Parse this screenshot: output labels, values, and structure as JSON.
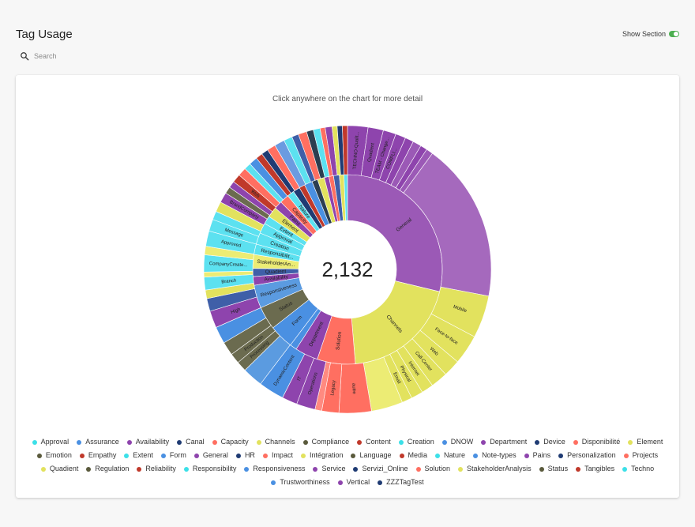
{
  "header": {
    "title": "Tag Usage",
    "toggle_label": "Show Section",
    "toggle_on": true
  },
  "search": {
    "placeholder": "Search",
    "icon": "search-icon"
  },
  "chart": {
    "hint": "Click anywhere on the chart for more detail",
    "total": "2,132"
  },
  "chart_data": {
    "type": "sunburst",
    "center_value": 2132,
    "inner_ring": [
      {
        "label": "General",
        "color": "#9b59b6",
        "weight": 0.292
      },
      {
        "label": "Channels",
        "color": "#e2e25e",
        "weight": 0.202
      },
      {
        "label": "Solution",
        "color": "#ff6f61",
        "weight": 0.066
      },
      {
        "label": "Department",
        "color": "#8e44ad",
        "weight": 0.04
      },
      {
        "label": "",
        "color": "#4a90e2",
        "weight": 0.012
      },
      {
        "label": "Form",
        "color": "#4a90e2",
        "weight": 0.042
      },
      {
        "label": "Status",
        "color": "#6b6b4f",
        "weight": 0.04
      },
      {
        "label": "Responsiveness",
        "color": "#5b9be0",
        "weight": 0.04
      },
      {
        "label": "Availability",
        "color": "#8e44ad",
        "weight": 0.015
      },
      {
        "label": "Quadient",
        "color": "#3f5fa8",
        "weight": 0.014
      },
      {
        "label": "StakeholderAn...",
        "color": "#ecec74",
        "weight": 0.024
      },
      {
        "label": "Responsibilit...",
        "color": "#5ce1f0",
        "weight": 0.018
      },
      {
        "label": "Creation",
        "color": "#5ce1f0",
        "weight": 0.02
      },
      {
        "label": "Approval",
        "color": "#5ce1f0",
        "weight": 0.018
      },
      {
        "label": "Extent",
        "color": "#5ce1f0",
        "weight": 0.014
      },
      {
        "label": "Element",
        "color": "#e2e25e",
        "weight": 0.018
      },
      {
        "label": "Pains",
        "color": "#8e44ad",
        "weight": 0.014
      },
      {
        "label": "Capacity",
        "color": "#ff6f61",
        "weight": 0.016
      },
      {
        "label": "Nature",
        "color": "#5ce1f0",
        "weight": 0.012
      },
      {
        "label": "",
        "color": "#1f3b73",
        "weight": 0.012
      },
      {
        "label": "",
        "color": "#c0392b",
        "weight": 0.01
      },
      {
        "label": "",
        "color": "#4a90e2",
        "weight": 0.014
      },
      {
        "label": "",
        "color": "#2c3e50",
        "weight": 0.01
      },
      {
        "label": "",
        "color": "#e2e25e",
        "weight": 0.012
      },
      {
        "label": "",
        "color": "#8e44ad",
        "weight": 0.008
      },
      {
        "label": "",
        "color": "#ff6f61",
        "weight": 0.008
      },
      {
        "label": "",
        "color": "#3f5fa8",
        "weight": 0.01
      },
      {
        "label": "",
        "color": "#e2e25e",
        "weight": 0.008
      },
      {
        "label": "",
        "color": "#5ce1f0",
        "weight": 0.006
      }
    ],
    "outer_ring": [
      {
        "label": "TECHNO-Qualit...",
        "color": "#8e44ad",
        "weight": 0.024
      },
      {
        "label": "Quadient",
        "color": "#8e44ad",
        "weight": 0.018
      },
      {
        "label": "TEAM - Change...",
        "color": "#8e44ad",
        "weight": 0.015
      },
      {
        "label": "COMPLI...",
        "color": "#8e44ad",
        "weight": 0.012
      },
      {
        "label": "",
        "color": "#8e44ad",
        "weight": 0.01
      },
      {
        "label": "",
        "color": "#9b59b6",
        "weight": 0.01
      },
      {
        "label": "",
        "color": "#8e44ad",
        "weight": 0.008
      },
      {
        "label": "",
        "color": "#9b59b6",
        "weight": 0.008
      },
      {
        "label": "",
        "color": "#a569bd",
        "weight": 0.187
      },
      {
        "label": "Mobile",
        "color": "#e2e25e",
        "weight": 0.05
      },
      {
        "label": "Face-to-face",
        "color": "#e2e25e",
        "weight": 0.035
      },
      {
        "label": "Web",
        "color": "#e2e25e",
        "weight": 0.02
      },
      {
        "label": "Call-Center",
        "color": "#e2e25e",
        "weight": 0.02
      },
      {
        "label": "Internet",
        "color": "#e2e25e",
        "weight": 0.014
      },
      {
        "label": "Physical",
        "color": "#e2e25e",
        "weight": 0.014
      },
      {
        "label": "Email",
        "color": "#e2e25e",
        "weight": 0.012
      },
      {
        "label": "",
        "color": "#ecec74",
        "weight": 0.037
      },
      {
        "label": "autre",
        "color": "#ff6f61",
        "weight": 0.038
      },
      {
        "label": "Legacy",
        "color": "#ff6f61",
        "weight": 0.02
      },
      {
        "label": "",
        "color": "#ff8a80",
        "weight": 0.008
      },
      {
        "label": "Operations",
        "color": "#8e44ad",
        "weight": 0.022
      },
      {
        "label": "IT",
        "color": "#8e44ad",
        "weight": 0.018
      },
      {
        "label": "DynamicContent",
        "color": "#4a90e2",
        "weight": 0.03
      },
      {
        "label": "",
        "color": "#5b9be0",
        "weight": 0.024
      },
      {
        "label": "Processing",
        "color": "#6b6b4f",
        "weight": 0.012
      },
      {
        "label": "Production",
        "color": "#6b6b4f",
        "weight": 0.012
      },
      {
        "label": "",
        "color": "#6b6b4f",
        "weight": 0.016
      },
      {
        "label": "",
        "color": "#4a90e2",
        "weight": 0.02
      },
      {
        "label": "High",
        "color": "#8e44ad",
        "weight": 0.02
      },
      {
        "label": "",
        "color": "#3f5fa8",
        "weight": 0.015
      },
      {
        "label": "",
        "color": "#e2e25e",
        "weight": 0.01
      },
      {
        "label": "Branch",
        "color": "#5ce1f0",
        "weight": 0.015
      },
      {
        "label": "",
        "color": "#ecec74",
        "weight": 0.006
      },
      {
        "label": "CompanyCreate...",
        "color": "#5ce1f0",
        "weight": 0.02
      },
      {
        "label": "",
        "color": "#ecec74",
        "weight": 0.01
      },
      {
        "label": "Approved",
        "color": "#5ce1f0",
        "weight": 0.018
      },
      {
        "label": "Message",
        "color": "#5ce1f0",
        "weight": 0.014
      },
      {
        "label": "",
        "color": "#5ce1f0",
        "weight": 0.01
      },
      {
        "label": "",
        "color": "#e2e25e",
        "weight": 0.012
      },
      {
        "label": "BrandCompany",
        "color": "#8e44ad",
        "weight": 0.012
      },
      {
        "label": "",
        "color": "#6b6b4f",
        "weight": 0.008
      },
      {
        "label": "",
        "color": "#8e44ad",
        "weight": 0.008
      },
      {
        "label": "Web",
        "color": "#c0392b",
        "weight": 0.01
      },
      {
        "label": "",
        "color": "#ff6f61",
        "weight": 0.01
      },
      {
        "label": "",
        "color": "#5ce1f0",
        "weight": 0.008
      },
      {
        "label": "",
        "color": "#4a90e2",
        "weight": 0.01
      },
      {
        "label": "",
        "color": "#c0392b",
        "weight": 0.008
      },
      {
        "label": "",
        "color": "#1f3b73",
        "weight": 0.008
      },
      {
        "label": "",
        "color": "#ff6f61",
        "weight": 0.01
      },
      {
        "label": "",
        "color": "#6b9be0",
        "weight": 0.012
      },
      {
        "label": "",
        "color": "#5ce1f0",
        "weight": 0.01
      },
      {
        "label": "",
        "color": "#3f5fa8",
        "weight": 0.008
      },
      {
        "label": "",
        "color": "#ff6f61",
        "weight": 0.01
      },
      {
        "label": "",
        "color": "#2c3e50",
        "weight": 0.008
      },
      {
        "label": "",
        "color": "#5ce1f0",
        "weight": 0.008
      },
      {
        "label": "",
        "color": "#ff6f61",
        "weight": 0.006
      },
      {
        "label": "",
        "color": "#8e44ad",
        "weight": 0.008
      },
      {
        "label": "",
        "color": "#e2e25e",
        "weight": 0.006
      },
      {
        "label": "",
        "color": "#1f3b73",
        "weight": 0.006
      },
      {
        "label": "",
        "color": "#c0392b",
        "weight": 0.006
      }
    ],
    "legend_placement": "bottom"
  },
  "legend": [
    {
      "label": "Approval",
      "color": "#3ce0e8"
    },
    {
      "label": "Assurance",
      "color": "#4a90e2"
    },
    {
      "label": "Availability",
      "color": "#8e44ad"
    },
    {
      "label": "Canal",
      "color": "#1f3b73"
    },
    {
      "label": "Capacity",
      "color": "#ff6f61"
    },
    {
      "label": "Channels",
      "color": "#e2e25e"
    },
    {
      "label": "Compliance",
      "color": "#5a5a3c"
    },
    {
      "label": "Content",
      "color": "#c0392b"
    },
    {
      "label": "Creation",
      "color": "#3ce0e8"
    },
    {
      "label": "DNOW",
      "color": "#4a90e2"
    },
    {
      "label": "Department",
      "color": "#8e44ad"
    },
    {
      "label": "Device",
      "color": "#1f3b73"
    },
    {
      "label": "Disponibilité",
      "color": "#ff6f61"
    },
    {
      "label": "Element",
      "color": "#e2e25e"
    },
    {
      "label": "Emotion",
      "color": "#5a5a3c"
    },
    {
      "label": "Empathy",
      "color": "#c0392b"
    },
    {
      "label": "Extent",
      "color": "#3ce0e8"
    },
    {
      "label": "Form",
      "color": "#4a90e2"
    },
    {
      "label": "General",
      "color": "#8e44ad"
    },
    {
      "label": "HR",
      "color": "#1f3b73"
    },
    {
      "label": "Impact",
      "color": "#ff6f61"
    },
    {
      "label": "Intégration",
      "color": "#e2e25e"
    },
    {
      "label": "Language",
      "color": "#5a5a3c"
    },
    {
      "label": "Media",
      "color": "#c0392b"
    },
    {
      "label": "Nature",
      "color": "#3ce0e8"
    },
    {
      "label": "Note-types",
      "color": "#4a90e2"
    },
    {
      "label": "Pains",
      "color": "#8e44ad"
    },
    {
      "label": "Personalization",
      "color": "#1f3b73"
    },
    {
      "label": "Projects",
      "color": "#ff6f61"
    },
    {
      "label": "Quadient",
      "color": "#e2e25e"
    },
    {
      "label": "Regulation",
      "color": "#5a5a3c"
    },
    {
      "label": "Reliability",
      "color": "#c0392b"
    },
    {
      "label": "Responsibility",
      "color": "#3ce0e8"
    },
    {
      "label": "Responsiveness",
      "color": "#4a90e2"
    },
    {
      "label": "Service",
      "color": "#8e44ad"
    },
    {
      "label": "Servizi_Online",
      "color": "#1f3b73"
    },
    {
      "label": "Solution",
      "color": "#ff6f61"
    },
    {
      "label": "StakeholderAnalysis",
      "color": "#e2e25e"
    },
    {
      "label": "Status",
      "color": "#5a5a3c"
    },
    {
      "label": "Tangibles",
      "color": "#c0392b"
    },
    {
      "label": "Techno",
      "color": "#3ce0e8"
    },
    {
      "label": "Trustworthiness",
      "color": "#4a90e2"
    },
    {
      "label": "Vertical",
      "color": "#8e44ad"
    },
    {
      "label": "ZZZTagTest",
      "color": "#1f3b73"
    }
  ]
}
